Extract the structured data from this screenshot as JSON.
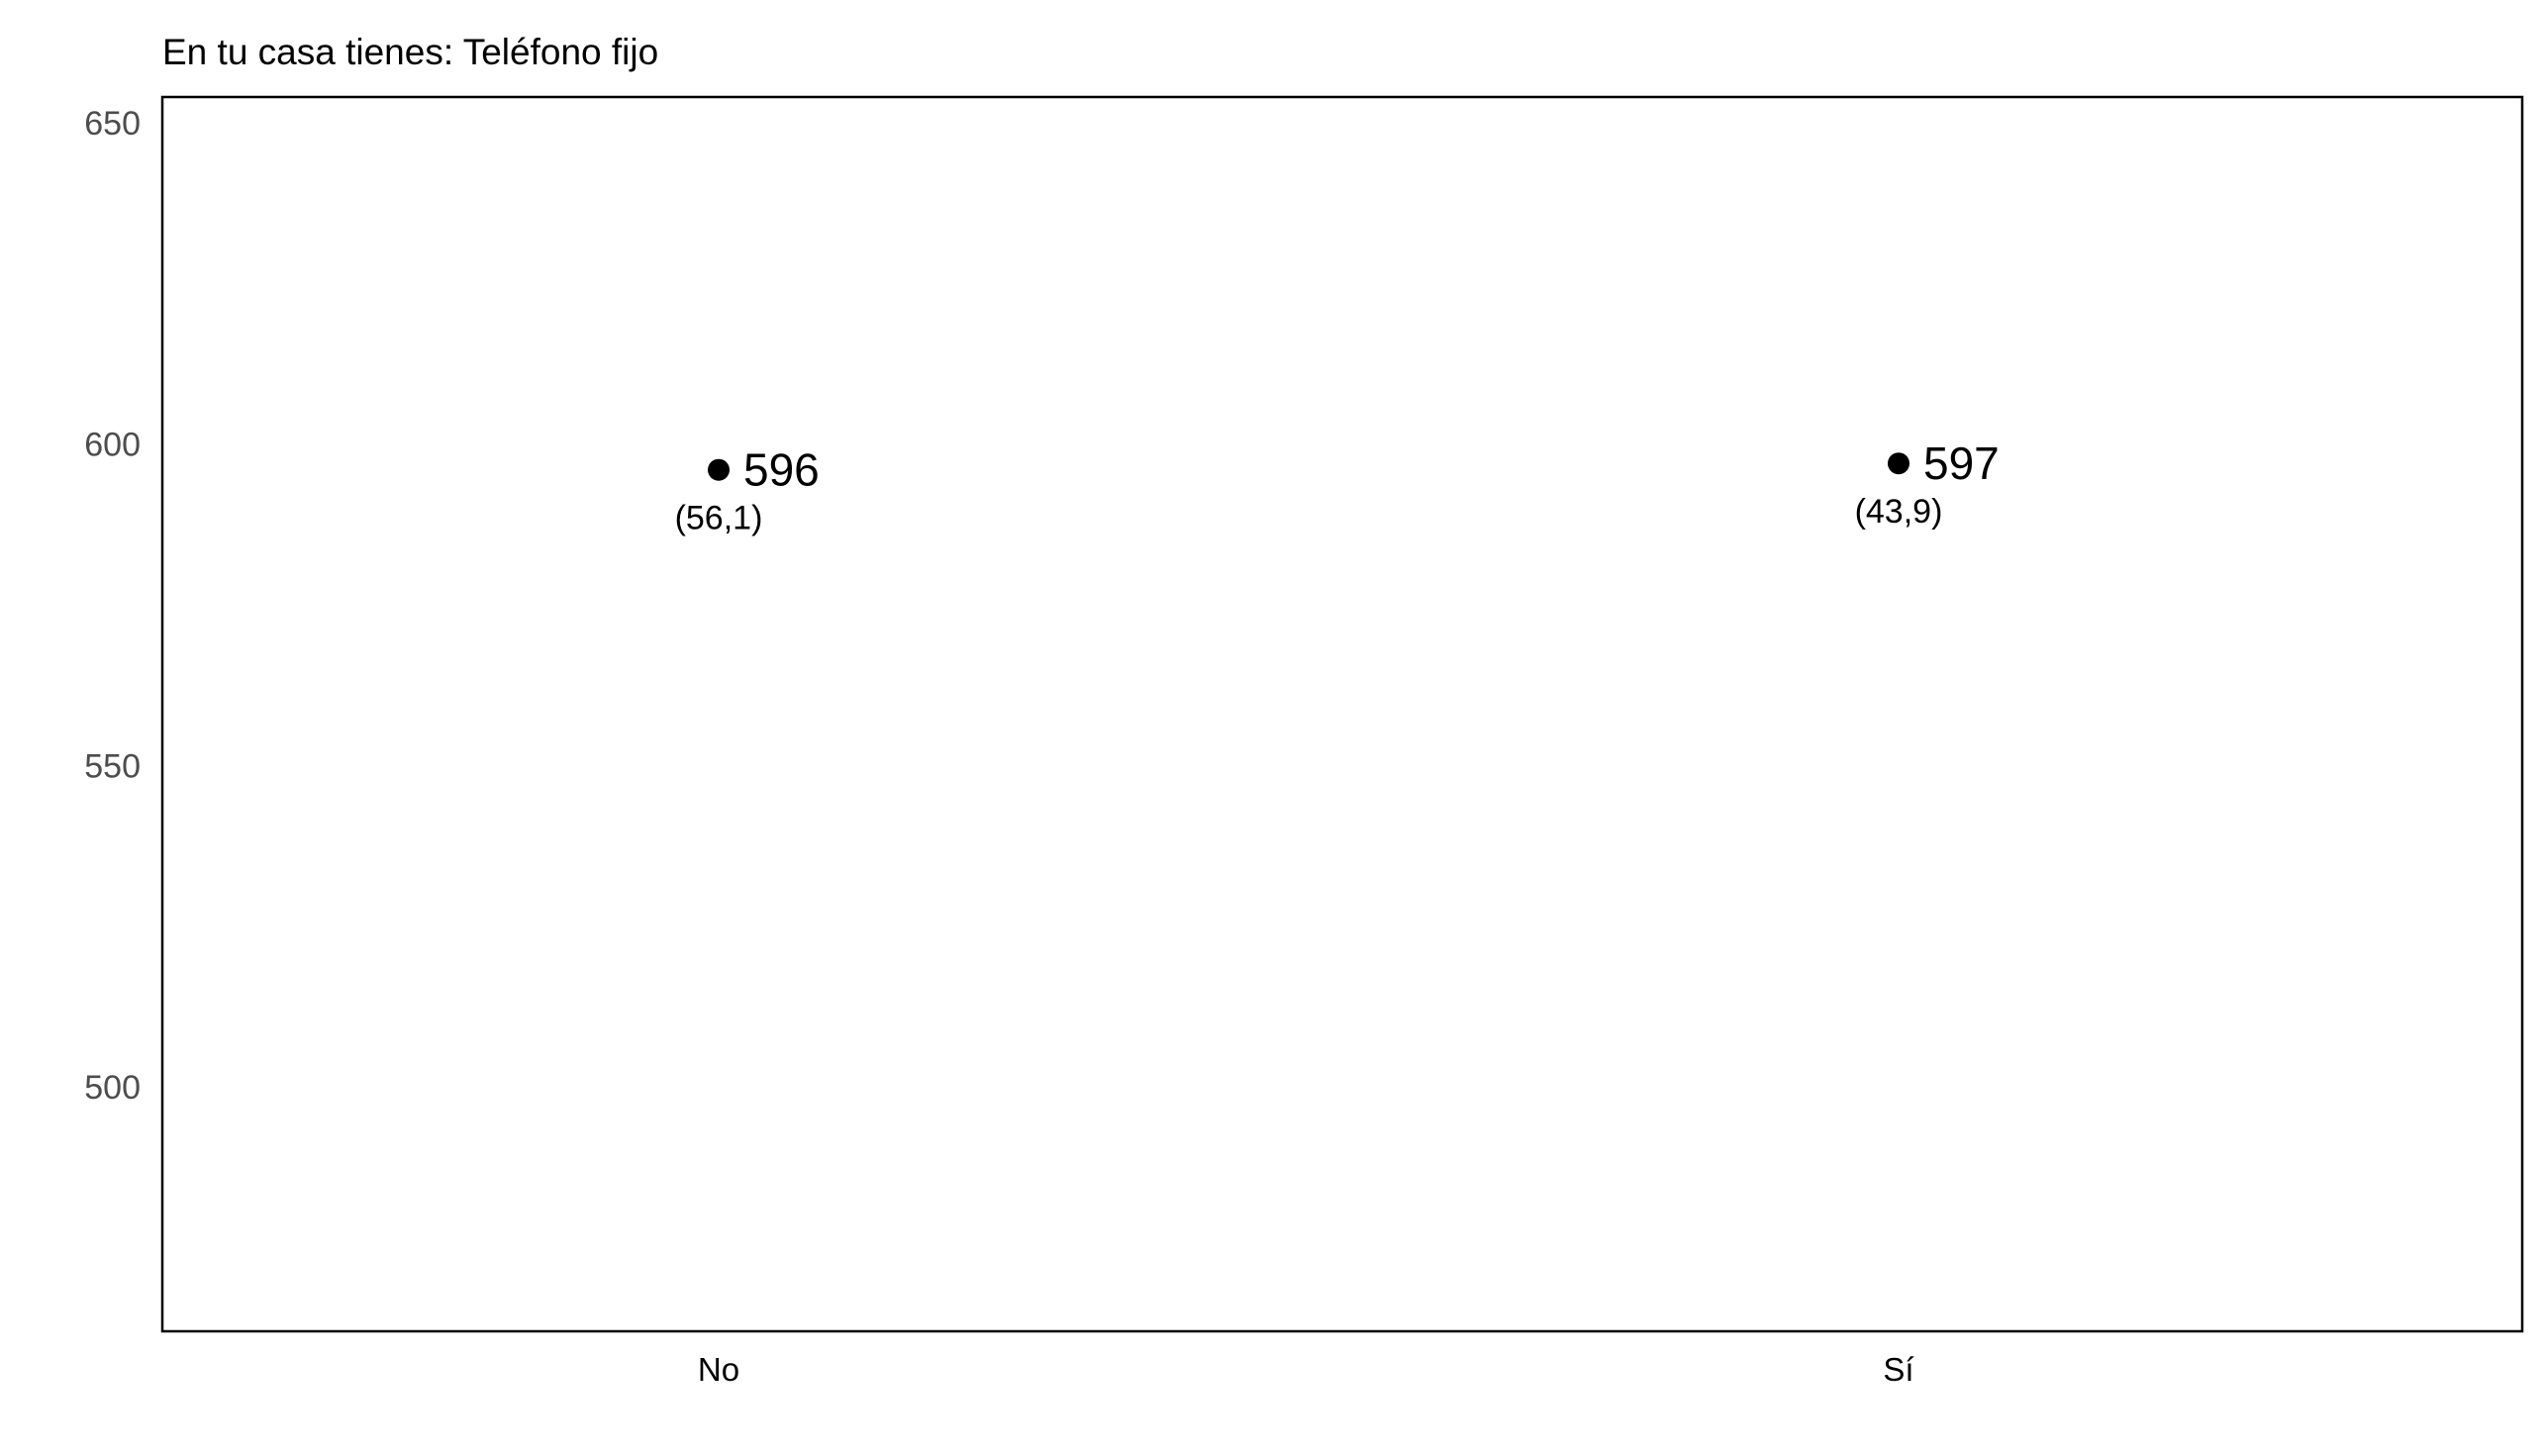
{
  "chart_data": {
    "type": "scatter",
    "title": "En tu casa tienes: Teléfono fijo",
    "xlabel": "",
    "ylabel": "",
    "categories": [
      "No",
      "Sí"
    ],
    "values": [
      596,
      597
    ],
    "value_labels": [
      "596",
      "597"
    ],
    "percent_labels": [
      "(56,1)",
      "(43,9)"
    ],
    "ylim": [
      462,
      654
    ],
    "yticks": [
      500,
      550,
      600,
      650
    ],
    "ytick_labels": [
      "500",
      "550",
      "600",
      "650"
    ],
    "grid": false,
    "legend": "none",
    "colors": {
      "point": "#000000",
      "frame": "#000000",
      "tick_text": "#4d4d4d"
    }
  }
}
